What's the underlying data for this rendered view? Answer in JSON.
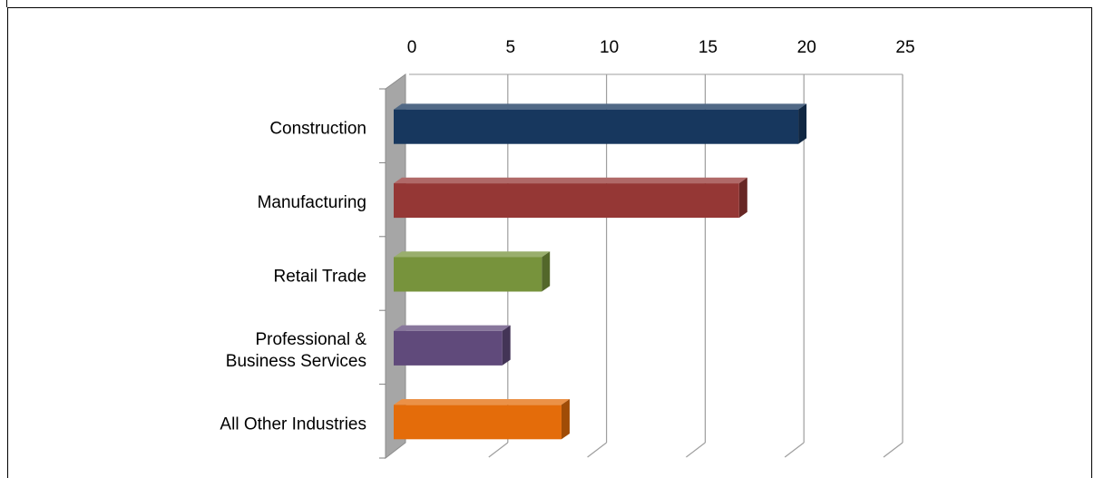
{
  "chart_data": {
    "type": "bar",
    "orientation": "horizontal",
    "three_d": true,
    "axis_position": "top",
    "categories": [
      "Construction",
      "Manufacturing",
      "Retail Trade",
      "Professional & Business Services",
      "All Other Industries"
    ],
    "category_lines": [
      [
        "Construction"
      ],
      [
        "Manufacturing"
      ],
      [
        "Retail Trade"
      ],
      [
        "Professional &",
        "Business Services"
      ],
      [
        "All Other Industries"
      ]
    ],
    "values": [
      20.5,
      17.5,
      7.5,
      5.5,
      8.5
    ],
    "colors": [
      "#17375e",
      "#953735",
      "#77933c",
      "#604a7b",
      "#e46c0a"
    ],
    "xticks": [
      "0",
      "5",
      "10",
      "15",
      "20",
      "25"
    ],
    "xlim": [
      0,
      25
    ],
    "grid": true,
    "legend": "none"
  }
}
